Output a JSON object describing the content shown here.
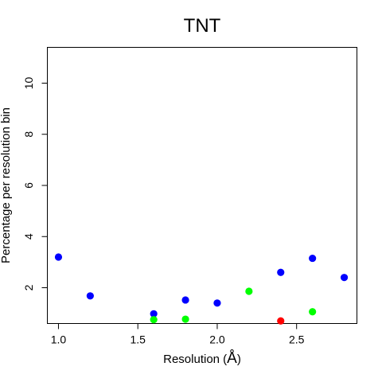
{
  "chart_data": {
    "type": "scatter",
    "title": "TNT",
    "xlabel": "Resolution (",
    "xlabel_unit": "Å",
    "xlabel_suffix": ")",
    "ylabel": "Percentage per resolution bin",
    "xlim": [
      0.93,
      2.88
    ],
    "ylim": [
      0.6,
      11.4
    ],
    "x_ticks": [
      1.0,
      1.5,
      2.0,
      2.5
    ],
    "x_tick_labels": [
      "1.0",
      "1.5",
      "2.0",
      "2.5"
    ],
    "y_ticks": [
      2,
      4,
      6,
      8,
      10
    ],
    "y_tick_labels": [
      "2",
      "4",
      "6",
      "8",
      "10"
    ],
    "grid": false,
    "series": [
      {
        "color": "#0000ff",
        "points": [
          {
            "x": 1.0,
            "y": 3.2
          },
          {
            "x": 1.2,
            "y": 1.68
          },
          {
            "x": 1.6,
            "y": 0.98
          },
          {
            "x": 1.8,
            "y": 1.52
          },
          {
            "x": 2.0,
            "y": 1.4
          },
          {
            "x": 2.4,
            "y": 2.6
          },
          {
            "x": 2.6,
            "y": 3.15
          },
          {
            "x": 2.8,
            "y": 2.4
          }
        ]
      },
      {
        "color": "#00ff00",
        "points": [
          {
            "x": 1.6,
            "y": 0.75
          },
          {
            "x": 1.8,
            "y": 0.77
          },
          {
            "x": 2.2,
            "y": 1.86
          },
          {
            "x": 2.6,
            "y": 1.06
          }
        ]
      },
      {
        "color": "#ff0000",
        "points": [
          {
            "x": 2.4,
            "y": 0.7
          }
        ]
      }
    ]
  }
}
